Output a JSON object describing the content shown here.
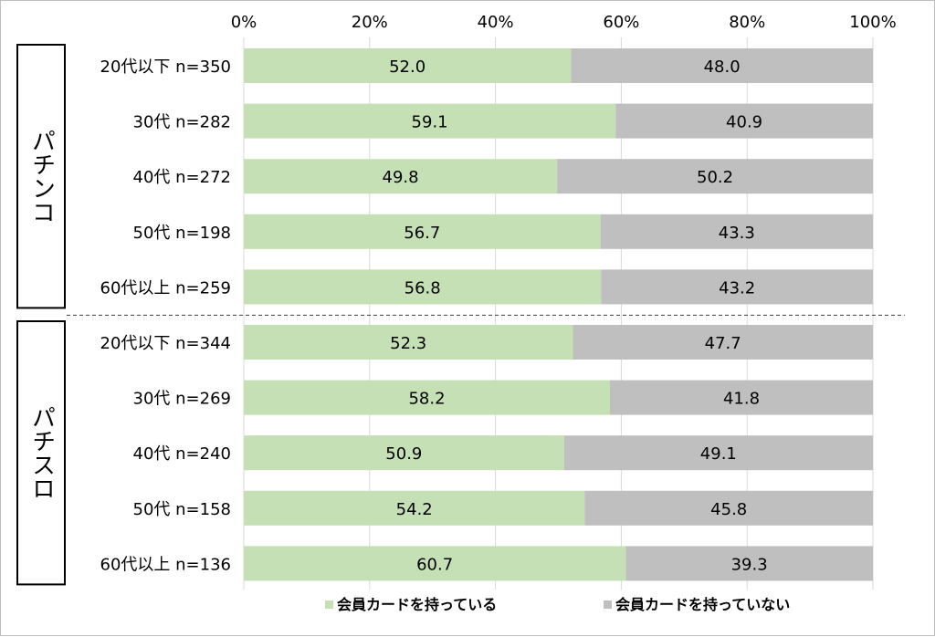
{
  "chart_data": {
    "type": "bar",
    "stacked": "100%",
    "orientation": "horizontal",
    "x_ticks": [
      "0%",
      "20%",
      "40%",
      "60%",
      "80%",
      "100%"
    ],
    "xlim": [
      0,
      100
    ],
    "grid": true,
    "legend_position": "bottom",
    "groups": [
      {
        "label": "パチンコ",
        "categories": [
          "20代以下 n=350",
          "30代 n=282",
          "40代 n=272",
          "50代 n=198",
          "60代以上 n=259"
        ],
        "series": [
          {
            "name": "会員カードを持っている",
            "values": [
              52.0,
              59.1,
              49.8,
              56.7,
              56.8
            ],
            "labels": [
              "52.0",
              "59.1",
              "49.8",
              "56.7",
              "56.8"
            ]
          },
          {
            "name": "会員カードを持っていない",
            "values": [
              48.0,
              40.9,
              50.2,
              43.3,
              43.2
            ],
            "labels": [
              "48.0",
              "40.9",
              "50.2",
              "43.3",
              "43.2"
            ]
          }
        ]
      },
      {
        "label": "パチスロ",
        "categories": [
          "20代以下 n=344",
          "30代 n=269",
          "40代 n=240",
          "50代 n=158",
          "60代以上 n=136"
        ],
        "series": [
          {
            "name": "会員カードを持っている",
            "values": [
              52.3,
              58.2,
              50.9,
              54.2,
              60.7
            ],
            "labels": [
              "52.3",
              "58.2",
              "50.9",
              "54.2",
              "60.7"
            ]
          },
          {
            "name": "会員カードを持っていない",
            "values": [
              47.7,
              41.8,
              49.1,
              45.8,
              39.3
            ],
            "labels": [
              "47.7",
              "41.8",
              "49.1",
              "45.8",
              "39.3"
            ]
          }
        ]
      }
    ],
    "legend": [
      "会員カードを持っている",
      "会員カードを持っていない"
    ],
    "colors": {
      "has_card": "#c5e0b4",
      "no_card": "#bfbfbf",
      "grid": "#d9d9d9",
      "separator": "#404040"
    }
  }
}
